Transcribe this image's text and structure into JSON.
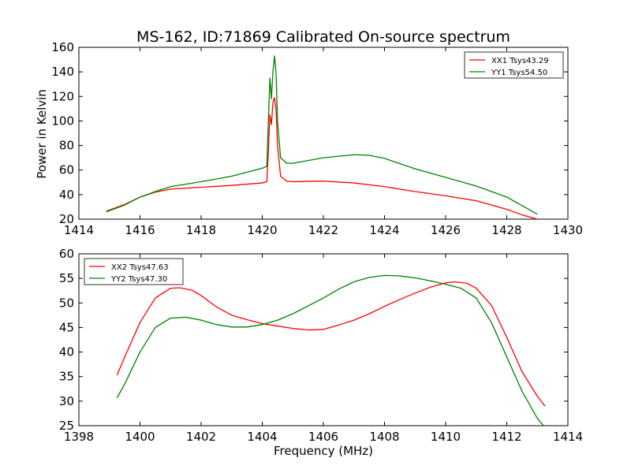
{
  "chart_data": [
    {
      "type": "line",
      "title": "MS-162, ID:71869 Calibrated On-source spectrum",
      "xlabel": "",
      "ylabel": "Power in Kelvin",
      "xlim": [
        1414,
        1430
      ],
      "ylim": [
        20,
        160
      ],
      "xticks": [
        1414,
        1416,
        1418,
        1420,
        1422,
        1424,
        1426,
        1428,
        1430
      ],
      "yticks": [
        20,
        40,
        60,
        80,
        100,
        120,
        140,
        160
      ],
      "legend_position": "top-right",
      "series": [
        {
          "name": "XX1 Tsys43.29",
          "color": "#ff0000",
          "x": [
            1414.9,
            1415.5,
            1416.0,
            1416.5,
            1417.0,
            1418.0,
            1419.0,
            1420.0,
            1420.15,
            1420.2,
            1420.25,
            1420.3,
            1420.35,
            1420.4,
            1420.45,
            1420.5,
            1420.6,
            1420.8,
            1421.0,
            1422.0,
            1423.0,
            1424.0,
            1425.0,
            1426.0,
            1427.0,
            1428.0,
            1428.5,
            1429.0
          ],
          "y": [
            26.5,
            32,
            38,
            42,
            44.5,
            46,
            47.5,
            49.5,
            50.5,
            75,
            105,
            97,
            115,
            119,
            110,
            80,
            55,
            51,
            50.5,
            51,
            49.5,
            46.5,
            42.5,
            39,
            35,
            28,
            23.5,
            20
          ]
        },
        {
          "name": "YY1 Tsys54.50",
          "color": "#008000",
          "x": [
            1414.9,
            1415.5,
            1416.0,
            1416.5,
            1417.0,
            1418.0,
            1419.0,
            1420.0,
            1420.15,
            1420.2,
            1420.25,
            1420.3,
            1420.35,
            1420.4,
            1420.45,
            1420.5,
            1420.6,
            1420.8,
            1421.0,
            1422.0,
            1423.0,
            1423.5,
            1424.0,
            1425.0,
            1426.0,
            1427.0,
            1428.0,
            1428.5,
            1429.0
          ],
          "y": [
            26,
            31.5,
            38,
            42.5,
            46.5,
            50.5,
            55,
            61.5,
            63,
            100,
            135,
            118,
            140,
            153,
            140,
            100,
            70,
            65.5,
            65.5,
            70,
            72.5,
            72,
            69.5,
            61,
            54,
            47,
            38,
            31,
            24
          ]
        }
      ]
    },
    {
      "type": "line",
      "title": "",
      "xlabel": "Frequency (MHz)",
      "ylabel": "",
      "xlim": [
        1398,
        1414
      ],
      "ylim": [
        25,
        60
      ],
      "xticks": [
        1398,
        1400,
        1402,
        1404,
        1406,
        1408,
        1410,
        1412,
        1414
      ],
      "yticks": [
        25,
        30,
        35,
        40,
        45,
        50,
        55,
        60
      ],
      "legend_position": "top-left",
      "series": [
        {
          "name": "XX2 Tsys47.63",
          "color": "#ff0000",
          "x": [
            1399.25,
            1399.5,
            1400.0,
            1400.5,
            1401.0,
            1401.3,
            1401.7,
            1402.0,
            1402.5,
            1403.0,
            1403.5,
            1404.0,
            1404.5,
            1405.0,
            1405.5,
            1406.0,
            1406.5,
            1407.0,
            1407.5,
            1408.0,
            1408.5,
            1409.0,
            1409.5,
            1410.0,
            1410.3,
            1410.7,
            1411.0,
            1411.5,
            1412.0,
            1412.5,
            1413.0,
            1413.25
          ],
          "y": [
            35.3,
            39,
            46,
            51,
            53,
            53.1,
            52.6,
            51.5,
            49.2,
            47.5,
            46.6,
            45.8,
            45.3,
            44.8,
            44.5,
            44.6,
            45.5,
            46.5,
            47.8,
            49.3,
            50.7,
            52,
            53.2,
            54.1,
            54.3,
            54,
            53,
            49.5,
            43,
            36,
            31,
            29
          ]
        },
        {
          "name": "YY2 Tsys47.30",
          "color": "#008000",
          "x": [
            1399.25,
            1399.5,
            1400.0,
            1400.5,
            1401.0,
            1401.5,
            1402.0,
            1402.5,
            1403.0,
            1403.5,
            1404.0,
            1404.5,
            1405.0,
            1405.5,
            1406.0,
            1406.5,
            1407.0,
            1407.5,
            1408.0,
            1408.5,
            1409.0,
            1409.5,
            1410.0,
            1410.5,
            1411.0,
            1411.5,
            1412.0,
            1412.5,
            1413.0,
            1413.2
          ],
          "y": [
            30.7,
            33.5,
            40,
            45,
            46.9,
            47.1,
            46.5,
            45.6,
            45.1,
            45.1,
            45.6,
            46.5,
            47.8,
            49.4,
            51,
            52.8,
            54.3,
            55.2,
            55.6,
            55.5,
            55.1,
            54.5,
            53.8,
            53,
            51,
            46,
            39,
            32,
            26.5,
            25
          ]
        }
      ]
    }
  ]
}
